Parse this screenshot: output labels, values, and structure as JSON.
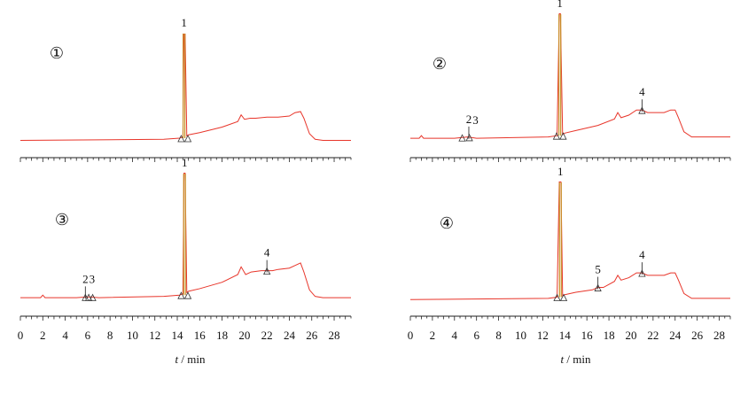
{
  "chart_data": [
    {
      "type": "line",
      "label": "①",
      "xlabel_italic": "t",
      "xlabel_unit": " / min",
      "xlim": [
        0,
        29.5
      ],
      "xticks": [
        0,
        2,
        4,
        6,
        8,
        10,
        12,
        14,
        16,
        18,
        20,
        22,
        24,
        26,
        28
      ],
      "baseline_at_start": 0.02,
      "baseline_at_end": 0.02,
      "series": [
        {
          "x": [
            0,
            12.8,
            14.2,
            14.5,
            14.6,
            14.7,
            14.85,
            15.0,
            16.0,
            18.0,
            19.4,
            19.7,
            20.0,
            20.5,
            21,
            22,
            23,
            24,
            24.5,
            25.0,
            25.3,
            25.8,
            26.3,
            27,
            29.5
          ],
          "y": [
            0.02,
            0.03,
            0.04,
            0.05,
            0.98,
            0.98,
            0.06,
            0.07,
            0.09,
            0.14,
            0.19,
            0.25,
            0.21,
            0.22,
            0.22,
            0.23,
            0.23,
            0.24,
            0.27,
            0.28,
            0.22,
            0.08,
            0.03,
            0.02,
            0.02
          ]
        }
      ],
      "peaks": [
        {
          "label": "1",
          "x": 14.6,
          "tick": false,
          "markers": [
            14.35,
            14.95
          ]
        }
      ]
    },
    {
      "type": "line",
      "label": "②",
      "xlabel_italic": "t",
      "xlabel_unit": " / min",
      "xlim": [
        0,
        29.0
      ],
      "xticks": [
        0,
        2,
        4,
        6,
        8,
        10,
        12,
        14,
        16,
        18,
        20,
        22,
        24,
        26,
        28
      ],
      "series": [
        {
          "x": [
            0,
            0.8,
            1.0,
            1.2,
            4,
            4.6,
            5.2,
            5.6,
            6,
            12.5,
            13.3,
            13.5,
            13.6,
            13.8,
            14.0,
            15.0,
            17.0,
            18.5,
            18.8,
            19.1,
            19.8,
            20.5,
            21.0,
            21.5,
            22,
            23,
            23.6,
            24.0,
            24.3,
            24.8,
            25.5,
            29.0
          ],
          "y": [
            0.02,
            0.02,
            0.04,
            0.02,
            0.02,
            0.025,
            0.03,
            0.025,
            0.02,
            0.03,
            0.04,
            0.99,
            0.99,
            0.05,
            0.06,
            0.08,
            0.12,
            0.17,
            0.22,
            0.18,
            0.2,
            0.24,
            0.24,
            0.22,
            0.22,
            0.22,
            0.24,
            0.24,
            0.18,
            0.07,
            0.03,
            0.03
          ]
        }
      ],
      "peaks": [
        {
          "label": "1",
          "x": 13.55,
          "tick": false,
          "markers": [
            13.25,
            13.85
          ]
        },
        {
          "label": "2",
          "x": 5.3,
          "tick": true,
          "markers": [
            4.7,
            5.35
          ]
        },
        {
          "label": "3",
          "x": 5.9,
          "tick": false,
          "markers": []
        },
        {
          "label": "4",
          "x": 21.0,
          "tick": true,
          "markers": [
            21.0
          ]
        }
      ]
    },
    {
      "type": "line",
      "label": "③",
      "xlabel_italic": "",
      "xlabel_unit": "",
      "xlim": [
        0,
        29.5
      ],
      "xticks": [],
      "series": [
        {
          "x": [
            0,
            1.8,
            2.0,
            2.2,
            5,
            5.8,
            6.3,
            7,
            12.8,
            14.2,
            14.5,
            14.6,
            14.7,
            14.85,
            15.0,
            16,
            18,
            19.4,
            19.7,
            20.1,
            20.6,
            21.5,
            22.0,
            22.5,
            23.0,
            24.0,
            24.5,
            25.0,
            25.3,
            25.8,
            26.3,
            27,
            29.5
          ],
          "y": [
            0.02,
            0.02,
            0.04,
            0.02,
            0.02,
            0.025,
            0.025,
            0.02,
            0.03,
            0.04,
            0.05,
            0.99,
            0.99,
            0.06,
            0.07,
            0.09,
            0.14,
            0.2,
            0.26,
            0.2,
            0.22,
            0.23,
            0.23,
            0.23,
            0.24,
            0.25,
            0.27,
            0.29,
            0.22,
            0.08,
            0.03,
            0.02,
            0.02
          ]
        }
      ],
      "peaks": [
        {
          "label": "1",
          "x": 14.65,
          "tick": false,
          "markers": [
            14.35,
            14.95
          ]
        },
        {
          "label": "2",
          "x": 5.8,
          "tick": true,
          "markers": [
            5.8,
            6.1,
            6.45
          ]
        },
        {
          "label": "3",
          "x": 6.4,
          "tick": false,
          "markers": []
        },
        {
          "label": "4",
          "x": 22.0,
          "tick": true,
          "markers": [
            22.0
          ]
        }
      ]
    },
    {
      "type": "line",
      "label": "④",
      "xlabel_italic": "t",
      "xlabel_unit": " / min",
      "xlim": [
        0,
        29.0
      ],
      "xticks": [
        0,
        2,
        4,
        6,
        8,
        10,
        12,
        14,
        16,
        18,
        20,
        22,
        24,
        26,
        28
      ],
      "series": [
        {
          "x": [
            0,
            12.5,
            13.3,
            13.5,
            13.65,
            13.8,
            14.0,
            15,
            16.5,
            17.0,
            17.5,
            18.5,
            18.8,
            19.1,
            19.8,
            20.5,
            21.0,
            21.5,
            22,
            23,
            23.6,
            24.0,
            24.3,
            24.8,
            25.5,
            29.0
          ],
          "y": [
            0.02,
            0.03,
            0.04,
            0.99,
            0.99,
            0.05,
            0.06,
            0.08,
            0.1,
            0.12,
            0.12,
            0.17,
            0.22,
            0.18,
            0.2,
            0.24,
            0.24,
            0.22,
            0.22,
            0.22,
            0.24,
            0.24,
            0.18,
            0.07,
            0.03,
            0.03
          ]
        }
      ],
      "peaks": [
        {
          "label": "1",
          "x": 13.6,
          "tick": false,
          "markers": [
            13.3,
            13.9
          ]
        },
        {
          "label": "5",
          "x": 17.0,
          "tick": true,
          "markers": [
            17.0
          ]
        },
        {
          "label": "4",
          "x": 21.0,
          "tick": true,
          "markers": [
            21.0
          ]
        }
      ]
    }
  ],
  "style": {
    "trace_color": "#e8352a",
    "peak_color": "#c8922a",
    "axis_color": "#222222"
  }
}
